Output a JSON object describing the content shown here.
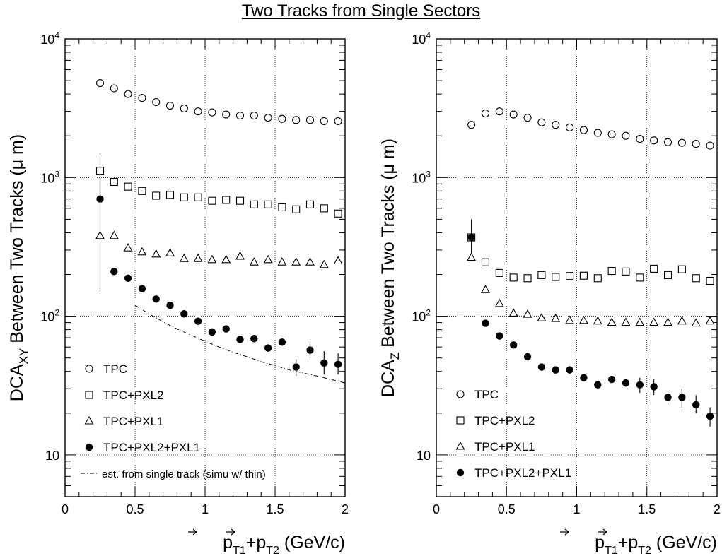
{
  "page_title": "Two Tracks from Single Sectors",
  "chart_data": [
    {
      "type": "scatter",
      "panel": "left",
      "ylabel_main": "DCA",
      "ylabel_sub": "XY",
      "ylabel_rest": " Between Two Tracks (μ m)",
      "xlabel": "p_T1 + p_T2 (GeV/c)",
      "xlabel_parts": {
        "p1": "p",
        "s1": "T1",
        "plus": "+",
        "p2": "p",
        "s2": "T2",
        "unit": " (GeV/c)"
      },
      "xlim": [
        0,
        2
      ],
      "ylim": [
        5,
        10000
      ],
      "y_scale": "log",
      "grid": true,
      "legend_position": "bottom-left",
      "x_ticks": [
        "0",
        "0.5",
        "1",
        "1.5",
        "2"
      ],
      "y_ticks": [
        {
          "value": 10,
          "base": "10",
          "exp": ""
        },
        {
          "value": 100,
          "base": "10",
          "exp": "2"
        },
        {
          "value": 1000,
          "base": "10",
          "exp": "3"
        },
        {
          "value": 10000,
          "base": "10",
          "exp": "4"
        }
      ],
      "x": [
        0.25,
        0.35,
        0.45,
        0.55,
        0.65,
        0.75,
        0.85,
        0.95,
        1.05,
        1.15,
        1.25,
        1.35,
        1.45,
        1.55,
        1.65,
        1.75,
        1.85,
        1.95
      ],
      "series": [
        {
          "name": "TPC",
          "marker": "open-circle",
          "values": [
            4800,
            4400,
            4000,
            3750,
            3500,
            3300,
            3150,
            3000,
            2950,
            2850,
            2800,
            2800,
            2700,
            2650,
            2600,
            2600,
            2550,
            2550
          ]
        },
        {
          "name": "TPC+PXL2",
          "marker": "open-square",
          "values": [
            1120,
            930,
            860,
            800,
            740,
            750,
            720,
            720,
            680,
            690,
            680,
            640,
            640,
            610,
            590,
            640,
            600,
            550
          ],
          "errors": [
            [
              0.25,
              700,
              1500
            ]
          ]
        },
        {
          "name": "TPC+PXL1",
          "marker": "open-triangle",
          "values": [
            380,
            380,
            310,
            290,
            280,
            285,
            260,
            260,
            255,
            255,
            270,
            245,
            255,
            245,
            245,
            245,
            235,
            250
          ]
        },
        {
          "name": "TPC+PXL2+PXL1",
          "marker": "filled-circle",
          "values": [
            700,
            210,
            188,
            158,
            133,
            120,
            104,
            92,
            77,
            81,
            68,
            69,
            59,
            65,
            43,
            57,
            46,
            45
          ],
          "errors": [
            [
              0.25,
              150,
              1100
            ],
            [
              1.65,
              37,
              49
            ],
            [
              1.75,
              50,
              66
            ],
            [
              1.85,
              38,
              56
            ],
            [
              1.95,
              38,
              54
            ]
          ]
        }
      ],
      "reference_line": {
        "name": "est. from single track (simu w/ thin)",
        "x": [
          0.5,
          0.6,
          0.7,
          0.8,
          0.9,
          1.0,
          1.1,
          1.2,
          1.3,
          1.4,
          1.5,
          1.6,
          1.7,
          1.8,
          1.9,
          2.0
        ],
        "values": [
          120,
          104,
          91,
          81,
          73,
          66,
          60,
          55,
          51,
          47,
          44,
          41,
          39,
          37,
          35,
          33
        ]
      }
    },
    {
      "type": "scatter",
      "panel": "right",
      "ylabel_main": "DCA",
      "ylabel_sub": "Z",
      "ylabel_rest": " Between Two Tracks (μ m)",
      "xlabel": "p_T1 + p_T2 (GeV/c)",
      "xlabel_parts": {
        "p1": "p",
        "s1": "T1",
        "plus": "+",
        "p2": "p",
        "s2": "T2",
        "unit": " (GeV/c)"
      },
      "xlim": [
        0,
        2
      ],
      "ylim": [
        5,
        10000
      ],
      "y_scale": "log",
      "grid": true,
      "legend_position": "bottom-left",
      "x_ticks": [
        "0",
        "0.5",
        "1",
        "1.5",
        "2"
      ],
      "y_ticks": [
        {
          "value": 10,
          "base": "10",
          "exp": ""
        },
        {
          "value": 100,
          "base": "10",
          "exp": "2"
        },
        {
          "value": 1000,
          "base": "10",
          "exp": "3"
        },
        {
          "value": 10000,
          "base": "10",
          "exp": "4"
        }
      ],
      "x": [
        0.25,
        0.35,
        0.45,
        0.55,
        0.65,
        0.75,
        0.85,
        0.95,
        1.05,
        1.15,
        1.25,
        1.35,
        1.45,
        1.55,
        1.65,
        1.75,
        1.85,
        1.95
      ],
      "series": [
        {
          "name": "TPC",
          "marker": "open-circle",
          "values": [
            2400,
            2900,
            3000,
            2850,
            2700,
            2500,
            2400,
            2300,
            2200,
            2100,
            2050,
            2000,
            1900,
            1850,
            1800,
            1780,
            1750,
            1700
          ]
        },
        {
          "name": "TPC+PXL2",
          "marker": "open-square",
          "values": [
            370,
            245,
            205,
            190,
            188,
            198,
            192,
            195,
            196,
            188,
            212,
            210,
            190,
            220,
            198,
            218,
            188,
            180
          ]
        },
        {
          "name": "TPC+PXL1",
          "marker": "open-triangle",
          "values": [
            265,
            155,
            123,
            105,
            103,
            97,
            96,
            93,
            93,
            92,
            90,
            90,
            90,
            90,
            90,
            92,
            89,
            92
          ]
        },
        {
          "name": "TPC+PXL2+PXL1",
          "marker": "filled-circle",
          "values": [
            370,
            89,
            72,
            62,
            51,
            43,
            41,
            41,
            36,
            32,
            35,
            33,
            32,
            31,
            26,
            26,
            23,
            19
          ],
          "errors": [
            [
              0.25,
              250,
              500
            ],
            [
              1.45,
              28,
              36
            ],
            [
              1.55,
              27,
              35
            ],
            [
              1.65,
              23,
              29
            ],
            [
              1.75,
              22,
              30
            ],
            [
              1.85,
              20,
              27
            ],
            [
              1.95,
              16,
              22
            ]
          ]
        }
      ]
    }
  ]
}
